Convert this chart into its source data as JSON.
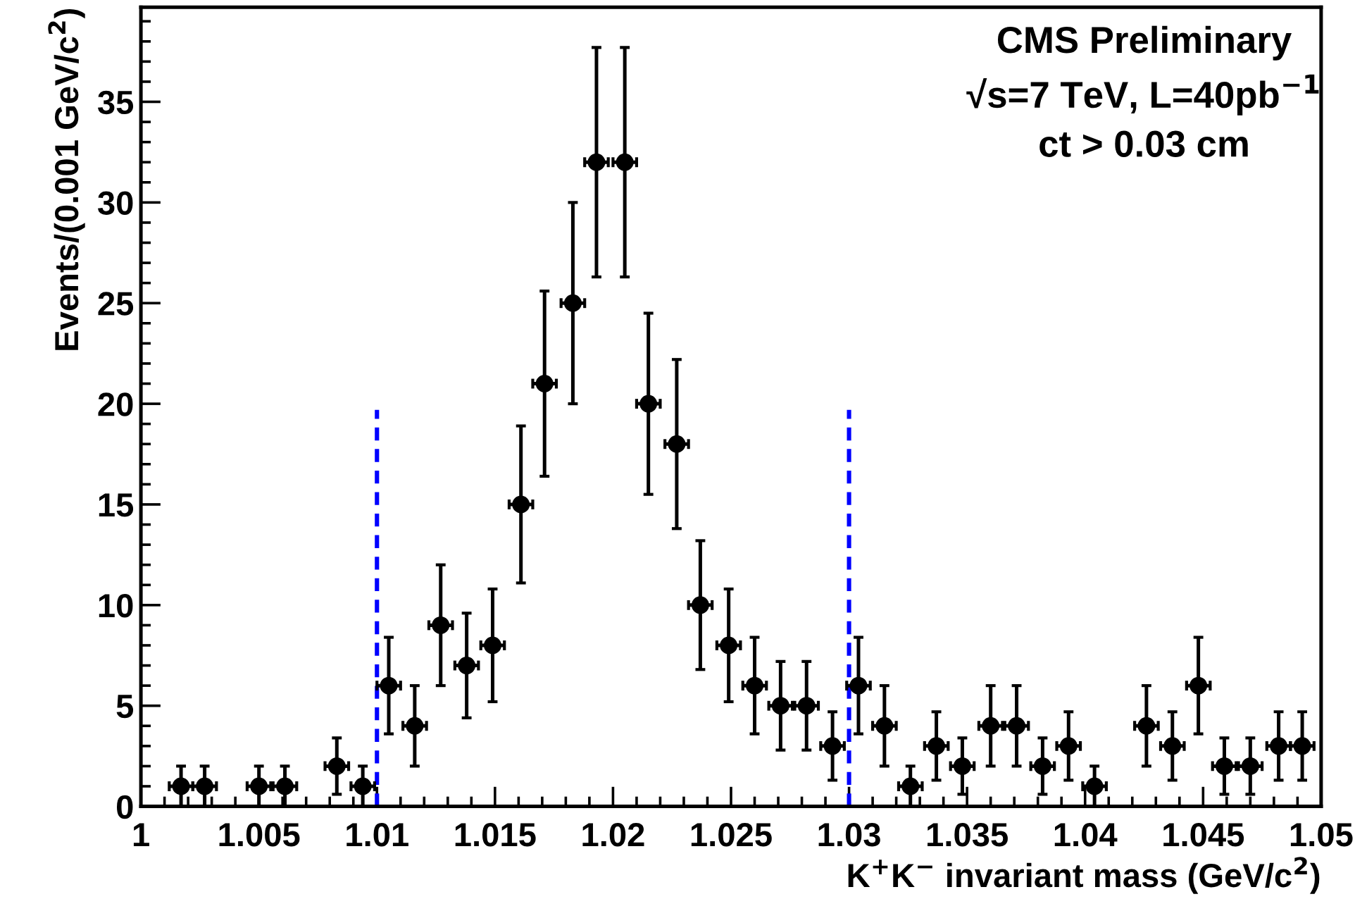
{
  "chart_data": {
    "type": "scatter",
    "xlabel": "K$^{+}$K$^{−}$ invariant mass (GeV/c$^{2}$)",
    "ylabel": "Events/(0.001 GeV/c$^{2}$)",
    "annotations": [
      "CMS Preliminary",
      "√s=7 TeV, L=40pb$^{−1}$",
      "ct > 0.03 cm"
    ],
    "xlim": [
      1,
      1.05
    ],
    "xticks": [
      {
        "value": 1,
        "label": "1"
      },
      {
        "value": 1.005,
        "label": "1.005"
      },
      {
        "value": 1.01,
        "label": "1.01"
      },
      {
        "value": 1.015,
        "label": "1.015"
      },
      {
        "value": 1.02,
        "label": "1.02"
      },
      {
        "value": 1.025,
        "label": "1.025"
      },
      {
        "value": 1.03,
        "label": "1.03"
      },
      {
        "value": 1.035,
        "label": "1.035"
      },
      {
        "value": 1.04,
        "label": "1.04"
      },
      {
        "value": 1.045,
        "label": "1.045"
      },
      {
        "value": 1.05,
        "label": "1.05"
      }
    ],
    "ylim": [
      0,
      39.7
    ],
    "yticks": [
      0,
      5,
      10,
      15,
      20,
      25,
      30,
      35
    ],
    "grid": false,
    "legend": false,
    "series": [
      {
        "color": "#000000",
        "marker": "circle",
        "x": [
          1.0017,
          1.0027,
          1.005,
          1.0061,
          1.0083,
          1.0094,
          1.0105,
          1.0116,
          1.0127,
          1.0138,
          1.0149,
          1.0161,
          1.0171,
          1.0183,
          1.0193,
          1.0205,
          1.0215,
          1.0227,
          1.0237,
          1.0249,
          1.026,
          1.0271,
          1.0282,
          1.0293,
          1.0304,
          1.0315,
          1.0326,
          1.0337,
          1.0348,
          1.036,
          1.0371,
          1.0382,
          1.0393,
          1.0404,
          1.0426,
          1.0437,
          1.0448,
          1.0459,
          1.047,
          1.0482,
          1.0492
        ],
        "values": [
          1,
          1,
          1,
          1,
          2,
          1,
          6,
          4,
          9,
          7,
          8,
          15,
          21,
          25,
          32,
          32,
          20,
          18,
          10,
          8,
          6,
          5,
          5,
          3,
          6,
          4,
          1,
          3,
          2,
          4,
          4,
          2,
          3,
          1,
          4,
          3,
          6,
          2,
          2,
          3,
          3
        ],
        "errors": [
          1,
          1,
          1,
          1,
          1.4,
          1,
          2.4,
          2,
          3,
          2.6,
          2.8,
          3.9,
          4.6,
          5,
          5.7,
          5.7,
          4.5,
          4.2,
          3.2,
          2.8,
          2.4,
          2.2,
          2.2,
          1.7,
          2.4,
          2,
          1,
          1.7,
          1.4,
          2,
          2,
          1.4,
          1.7,
          1,
          2,
          1.7,
          2.4,
          1.4,
          1.4,
          1.7,
          1.7
        ],
        "xerrors": [
          0.0005,
          0.0005,
          0.0005,
          0.0005,
          0.0005,
          0.0005,
          0.0005,
          0.0005,
          0.0005,
          0.0005,
          0.0005,
          0.0005,
          0.0005,
          0.0005,
          0.0005,
          0.0005,
          0.0005,
          0.0005,
          0.0005,
          0.0005,
          0.0005,
          0.0005,
          0.0005,
          0.0005,
          0.0005,
          0.0005,
          0.0005,
          0.0005,
          0.0005,
          0.0005,
          0.0005,
          0.0005,
          0.0005,
          0.0005,
          0.0005,
          0.0005,
          0.0005,
          0.0005,
          0.0005,
          0.0005,
          0.0005
        ]
      },
      {
        "type": "line",
        "color": "#0000ff",
        "line_style": "dashed",
        "marker": "none",
        "x": [
          1.01,
          1.01
        ],
        "values": [
          0,
          19.7
        ]
      },
      {
        "type": "line",
        "color": "#0000ff",
        "line_style": "dashed",
        "marker": "none",
        "x": [
          1.03,
          1.03
        ],
        "values": [
          0,
          19.7
        ]
      }
    ]
  }
}
